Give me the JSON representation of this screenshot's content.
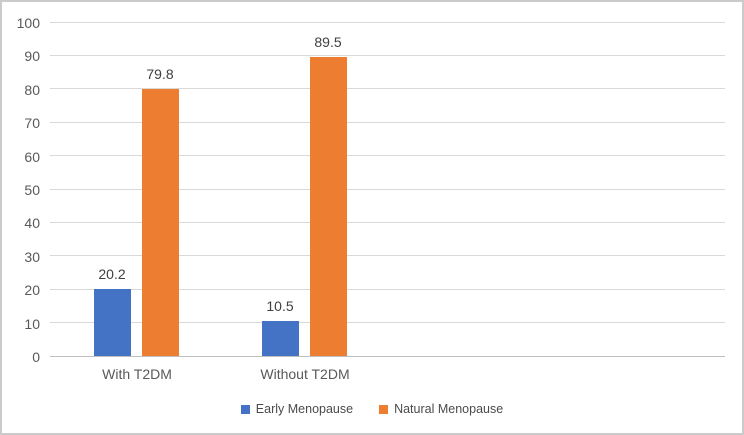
{
  "chart_data": {
    "type": "bar",
    "title": "",
    "xlabel": "",
    "ylabel": "",
    "categories": [
      "With T2DM",
      "Without T2DM"
    ],
    "series": [
      {
        "name": "Early Menopause",
        "color": "#4472C4",
        "values": [
          20.2,
          10.5
        ],
        "labels": [
          "20.2",
          "10.5"
        ]
      },
      {
        "name": "Natural Menopause",
        "color": "#ED7D31",
        "values": [
          79.8,
          89.5
        ],
        "labels": [
          "79.8",
          "89.5"
        ]
      }
    ],
    "ylim": [
      0,
      100
    ],
    "yticks": [
      0,
      10,
      20,
      30,
      40,
      50,
      60,
      70,
      80,
      90,
      100
    ],
    "grid": true,
    "data_labels_position": "outside-end",
    "legend_position": "bottom"
  },
  "colors": {
    "series_blue": "#4472C4",
    "series_orange": "#ED7D31",
    "gridline": "#d9d9d9",
    "axis_line": "#bfbfbf",
    "tick_text": "#595959",
    "data_label_text": "#404040",
    "frame_border": "#cbcbcb"
  }
}
